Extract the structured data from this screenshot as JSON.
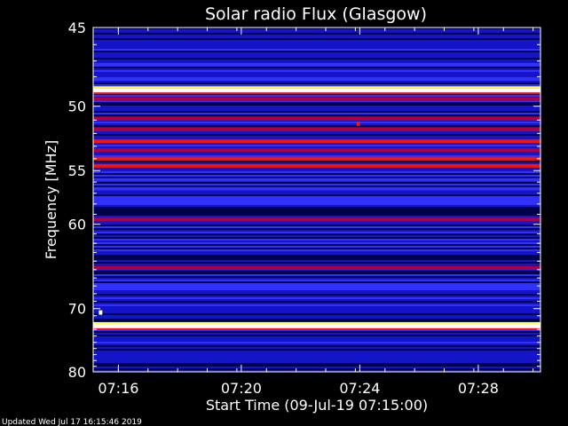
{
  "chart_data": {
    "type": "heatmap",
    "title": "Solar radio Flux (Glasgow)",
    "xlabel": "Start Time (09-Jul-19 07:15:00)",
    "ylabel": "Frequency [MHz]",
    "x_unit": "minutes after 07:15:00",
    "xlim": [
      0,
      15.1
    ],
    "ylim": [
      45,
      80
    ],
    "y_scale": "reciprocal",
    "x_ticks": [
      {
        "value": 0.85,
        "label": "07:16"
      },
      {
        "value": 5,
        "label": "07:20"
      },
      {
        "value": 9,
        "label": "07:24"
      },
      {
        "value": 13,
        "label": "07:28"
      }
    ],
    "y_ticks": [
      {
        "value": 45,
        "label": "45"
      },
      {
        "value": 50,
        "label": "50"
      },
      {
        "value": 55,
        "label": "55"
      },
      {
        "value": 60,
        "label": "60"
      },
      {
        "value": 70,
        "label": "70"
      },
      {
        "value": 80,
        "label": "80"
      }
    ],
    "colormap": [
      "#00004a",
      "#1414c8",
      "#3030ff",
      "#b00040",
      "#ff1000",
      "#ffff40",
      "#ffffff"
    ],
    "bands": [
      {
        "freq": 45.2,
        "level": 1
      },
      {
        "freq": 48.9,
        "level": 6
      },
      {
        "freq": 49.5,
        "level": 3
      },
      {
        "freq": 50.9,
        "level": 3
      },
      {
        "freq": 51.7,
        "level": 3
      },
      {
        "freq": 52.6,
        "level": 4
      },
      {
        "freq": 53.3,
        "level": 3
      },
      {
        "freq": 54.0,
        "level": 4
      },
      {
        "freq": 54.6,
        "level": 4
      },
      {
        "freq": 55.8,
        "level": 2
      },
      {
        "freq": 56.6,
        "level": 2
      },
      {
        "freq": 59.5,
        "level": 3
      },
      {
        "freq": 64.8,
        "level": 3
      },
      {
        "freq": 72.3,
        "level": 5
      },
      {
        "freq": 72.5,
        "level": 6
      }
    ],
    "spots": [
      {
        "time": 8.95,
        "freq": 51.3,
        "level": 4
      },
      {
        "time": 0.25,
        "freq": 70.6,
        "level": 6
      }
    ]
  },
  "footer": {
    "updated": "Updated Wed Jul 17 16:15:46 2019"
  }
}
